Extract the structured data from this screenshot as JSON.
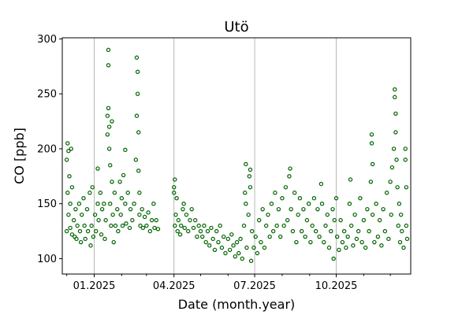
{
  "chart_data": {
    "type": "scatter",
    "title": "Utö",
    "xlabel": "Date (month.year)",
    "ylabel": "CO [ppb]",
    "xlim": [
      "2024-11-26",
      "2025-12-24"
    ],
    "ylim": [
      86,
      301
    ],
    "x_ticks": [
      {
        "date": "2025-01-01",
        "label": "01.2025"
      },
      {
        "date": "2025-04-01",
        "label": "04.2025"
      },
      {
        "date": "2025-07-01",
        "label": "07.2025"
      },
      {
        "date": "2025-10-01",
        "label": "10.2025"
      }
    ],
    "x_minor_ticks": [
      "2024-12-01",
      "2025-02-01",
      "2025-03-01",
      "2025-05-01",
      "2025-06-01",
      "2025-08-01",
      "2025-09-01",
      "2025-11-01",
      "2025-12-01"
    ],
    "y_ticks": [
      100,
      150,
      200,
      250,
      300
    ],
    "grid": "vertical lines at major x ticks",
    "marker": "hollow circle",
    "color": "#006400",
    "points": [
      [
        "2024-12-01",
        125
      ],
      [
        "2024-12-01",
        190
      ],
      [
        "2024-12-02",
        205
      ],
      [
        "2024-12-02",
        160
      ],
      [
        "2024-12-03",
        198
      ],
      [
        "2024-12-03",
        140
      ],
      [
        "2024-12-04",
        175
      ],
      [
        "2024-12-05",
        150
      ],
      [
        "2024-12-05",
        128
      ],
      [
        "2024-12-06",
        200
      ],
      [
        "2024-12-07",
        165
      ],
      [
        "2024-12-07",
        122
      ],
      [
        "2024-12-09",
        135
      ],
      [
        "2024-12-10",
        120
      ],
      [
        "2024-12-11",
        145
      ],
      [
        "2024-12-12",
        118
      ],
      [
        "2024-12-13",
        130
      ],
      [
        "2024-12-15",
        150
      ],
      [
        "2024-12-16",
        125
      ],
      [
        "2024-12-17",
        115
      ],
      [
        "2024-12-18",
        140
      ],
      [
        "2024-12-20",
        155
      ],
      [
        "2024-12-21",
        130
      ],
      [
        "2024-12-22",
        118
      ],
      [
        "2024-12-24",
        145
      ],
      [
        "2024-12-25",
        125
      ],
      [
        "2024-12-27",
        160
      ],
      [
        "2024-12-28",
        112
      ],
      [
        "2024-12-29",
        130
      ],
      [
        "2024-12-30",
        165
      ],
      [
        "2024-12-31",
        120
      ],
      [
        "2025-01-02",
        140
      ],
      [
        "2025-01-03",
        125
      ],
      [
        "2025-01-05",
        182
      ],
      [
        "2025-01-05",
        150
      ],
      [
        "2025-01-06",
        135
      ],
      [
        "2025-01-08",
        160
      ],
      [
        "2025-01-09",
        122
      ],
      [
        "2025-01-10",
        145
      ],
      [
        "2025-01-12",
        150
      ],
      [
        "2025-01-13",
        118
      ],
      [
        "2025-01-14",
        135
      ],
      [
        "2025-01-16",
        213
      ],
      [
        "2025-01-16",
        230
      ],
      [
        "2025-01-17",
        290
      ],
      [
        "2025-01-17",
        276
      ],
      [
        "2025-01-17",
        237
      ],
      [
        "2025-01-18",
        220
      ],
      [
        "2025-01-18",
        200
      ],
      [
        "2025-01-19",
        185
      ],
      [
        "2025-01-19",
        150
      ],
      [
        "2025-01-20",
        130
      ],
      [
        "2025-01-21",
        225
      ],
      [
        "2025-01-21",
        170
      ],
      [
        "2025-01-22",
        140
      ],
      [
        "2025-01-23",
        115
      ],
      [
        "2025-01-24",
        160
      ],
      [
        "2025-01-25",
        130
      ],
      [
        "2025-01-27",
        145
      ],
      [
        "2025-01-28",
        125
      ],
      [
        "2025-01-30",
        170
      ],
      [
        "2025-01-31",
        140
      ],
      [
        "2025-02-01",
        155
      ],
      [
        "2025-02-02",
        130
      ],
      [
        "2025-02-03",
        176
      ],
      [
        "2025-02-05",
        199
      ],
      [
        "2025-02-05",
        150
      ],
      [
        "2025-02-06",
        132
      ],
      [
        "2025-02-08",
        160
      ],
      [
        "2025-02-10",
        128
      ],
      [
        "2025-02-11",
        145
      ],
      [
        "2025-02-13",
        135
      ],
      [
        "2025-02-15",
        150
      ],
      [
        "2025-02-17",
        190
      ],
      [
        "2025-02-18",
        230
      ],
      [
        "2025-02-18",
        283
      ],
      [
        "2025-02-19",
        270
      ],
      [
        "2025-02-19",
        250
      ],
      [
        "2025-02-20",
        215
      ],
      [
        "2025-02-20",
        180
      ],
      [
        "2025-02-21",
        160
      ],
      [
        "2025-02-21",
        140
      ],
      [
        "2025-02-22",
        130
      ],
      [
        "2025-02-24",
        145
      ],
      [
        "2025-02-25",
        128
      ],
      [
        "2025-02-27",
        138
      ],
      [
        "2025-03-01",
        130
      ],
      [
        "2025-03-03",
        142
      ],
      [
        "2025-03-05",
        125
      ],
      [
        "2025-03-07",
        135
      ],
      [
        "2025-03-09",
        150
      ],
      [
        "2025-03-10",
        128
      ],
      [
        "2025-03-12",
        135
      ],
      [
        "2025-03-14",
        127
      ],
      [
        "2025-04-01",
        165
      ],
      [
        "2025-04-01",
        160
      ],
      [
        "2025-04-02",
        172
      ],
      [
        "2025-04-02",
        130
      ],
      [
        "2025-04-03",
        140
      ],
      [
        "2025-04-04",
        155
      ],
      [
        "2025-04-05",
        125
      ],
      [
        "2025-04-06",
        135
      ],
      [
        "2025-04-08",
        122
      ],
      [
        "2025-04-09",
        130
      ],
      [
        "2025-04-11",
        145
      ],
      [
        "2025-04-12",
        150
      ],
      [
        "2025-04-13",
        128
      ],
      [
        "2025-04-15",
        140
      ],
      [
        "2025-04-17",
        125
      ],
      [
        "2025-04-19",
        135
      ],
      [
        "2025-04-21",
        145
      ],
      [
        "2025-04-23",
        128
      ],
      [
        "2025-04-25",
        135
      ],
      [
        "2025-04-27",
        120
      ],
      [
        "2025-04-29",
        130
      ],
      [
        "2025-05-01",
        125
      ],
      [
        "2025-05-03",
        120
      ],
      [
        "2025-05-05",
        130
      ],
      [
        "2025-05-07",
        115
      ],
      [
        "2025-05-09",
        125
      ],
      [
        "2025-05-11",
        112
      ],
      [
        "2025-05-13",
        128
      ],
      [
        "2025-05-15",
        118
      ],
      [
        "2025-05-17",
        108
      ],
      [
        "2025-05-19",
        125
      ],
      [
        "2025-05-21",
        115
      ],
      [
        "2025-05-23",
        130
      ],
      [
        "2025-05-25",
        110
      ],
      [
        "2025-05-27",
        120
      ],
      [
        "2025-05-29",
        105
      ],
      [
        "2025-06-01",
        118
      ],
      [
        "2025-06-03",
        108
      ],
      [
        "2025-06-05",
        122
      ],
      [
        "2025-06-07",
        112
      ],
      [
        "2025-06-09",
        102
      ],
      [
        "2025-06-11",
        115
      ],
      [
        "2025-06-13",
        105
      ],
      [
        "2025-06-15",
        118
      ],
      [
        "2025-06-17",
        100
      ],
      [
        "2025-06-19",
        130
      ],
      [
        "2025-06-20",
        160
      ],
      [
        "2025-06-21",
        186
      ],
      [
        "2025-06-21",
        150
      ],
      [
        "2025-06-22",
        110
      ],
      [
        "2025-06-24",
        140
      ],
      [
        "2025-06-25",
        175
      ],
      [
        "2025-06-26",
        181
      ],
      [
        "2025-06-26",
        165
      ],
      [
        "2025-06-27",
        98
      ],
      [
        "2025-06-28",
        125
      ],
      [
        "2025-06-30",
        110
      ],
      [
        "2025-07-02",
        120
      ],
      [
        "2025-07-04",
        105
      ],
      [
        "2025-07-06",
        135
      ],
      [
        "2025-07-08",
        115
      ],
      [
        "2025-07-10",
        145
      ],
      [
        "2025-07-12",
        110
      ],
      [
        "2025-07-14",
        130
      ],
      [
        "2025-07-16",
        140
      ],
      [
        "2025-07-18",
        120
      ],
      [
        "2025-07-20",
        150
      ],
      [
        "2025-07-22",
        125
      ],
      [
        "2025-07-24",
        160
      ],
      [
        "2025-07-26",
        130
      ],
      [
        "2025-07-28",
        145
      ],
      [
        "2025-07-30",
        120
      ],
      [
        "2025-08-01",
        155
      ],
      [
        "2025-08-03",
        130
      ],
      [
        "2025-08-05",
        165
      ],
      [
        "2025-08-07",
        135
      ],
      [
        "2025-08-09",
        175
      ],
      [
        "2025-08-10",
        182
      ],
      [
        "2025-08-11",
        145
      ],
      [
        "2025-08-13",
        125
      ],
      [
        "2025-08-15",
        160
      ],
      [
        "2025-08-17",
        115
      ],
      [
        "2025-08-19",
        140
      ],
      [
        "2025-08-21",
        155
      ],
      [
        "2025-08-23",
        125
      ],
      [
        "2025-08-25",
        145
      ],
      [
        "2025-08-27",
        120
      ],
      [
        "2025-08-29",
        135
      ],
      [
        "2025-08-31",
        150
      ],
      [
        "2025-09-02",
        115
      ],
      [
        "2025-09-04",
        130
      ],
      [
        "2025-09-06",
        155
      ],
      [
        "2025-09-08",
        125
      ],
      [
        "2025-09-10",
        145
      ],
      [
        "2025-09-12",
        120
      ],
      [
        "2025-09-14",
        168
      ],
      [
        "2025-09-15",
        150
      ],
      [
        "2025-09-17",
        115
      ],
      [
        "2025-09-19",
        130
      ],
      [
        "2025-09-21",
        140
      ],
      [
        "2025-09-23",
        110
      ],
      [
        "2025-09-25",
        125
      ],
      [
        "2025-09-27",
        145
      ],
      [
        "2025-09-28",
        100
      ],
      [
        "2025-09-29",
        135
      ],
      [
        "2025-10-01",
        155
      ],
      [
        "2025-10-02",
        120
      ],
      [
        "2025-10-04",
        108
      ],
      [
        "2025-10-06",
        135
      ],
      [
        "2025-10-08",
        115
      ],
      [
        "2025-10-10",
        125
      ],
      [
        "2025-10-12",
        110
      ],
      [
        "2025-10-14",
        120
      ],
      [
        "2025-10-16",
        150
      ],
      [
        "2025-10-17",
        172
      ],
      [
        "2025-10-18",
        130
      ],
      [
        "2025-10-20",
        112
      ],
      [
        "2025-10-22",
        140
      ],
      [
        "2025-10-24",
        118
      ],
      [
        "2025-10-26",
        125
      ],
      [
        "2025-10-28",
        155
      ],
      [
        "2025-10-30",
        115
      ],
      [
        "2025-11-01",
        135
      ],
      [
        "2025-11-03",
        110
      ],
      [
        "2025-11-05",
        145
      ],
      [
        "2025-11-07",
        125
      ],
      [
        "2025-11-09",
        170
      ],
      [
        "2025-11-10",
        213
      ],
      [
        "2025-11-10",
        205
      ],
      [
        "2025-11-11",
        186
      ],
      [
        "2025-11-11",
        140
      ],
      [
        "2025-11-13",
        115
      ],
      [
        "2025-11-15",
        150
      ],
      [
        "2025-11-17",
        120
      ],
      [
        "2025-11-19",
        135
      ],
      [
        "2025-11-21",
        112
      ],
      [
        "2025-11-23",
        145
      ],
      [
        "2025-11-25",
        125
      ],
      [
        "2025-11-27",
        160
      ],
      [
        "2025-11-29",
        118
      ],
      [
        "2025-12-01",
        170
      ],
      [
        "2025-12-02",
        140
      ],
      [
        "2025-12-03",
        183
      ],
      [
        "2025-12-05",
        200
      ],
      [
        "2025-12-06",
        254
      ],
      [
        "2025-12-06",
        247
      ],
      [
        "2025-12-07",
        232
      ],
      [
        "2025-12-07",
        215
      ],
      [
        "2025-12-08",
        190
      ],
      [
        "2025-12-09",
        165
      ],
      [
        "2025-12-10",
        130
      ],
      [
        "2025-12-11",
        150
      ],
      [
        "2025-12-12",
        115
      ],
      [
        "2025-12-13",
        140
      ],
      [
        "2025-12-14",
        125
      ],
      [
        "2025-12-16",
        110
      ],
      [
        "2025-12-18",
        200
      ],
      [
        "2025-12-18",
        190
      ],
      [
        "2025-12-19",
        165
      ],
      [
        "2025-12-19",
        130
      ],
      [
        "2025-12-20",
        118
      ]
    ]
  }
}
